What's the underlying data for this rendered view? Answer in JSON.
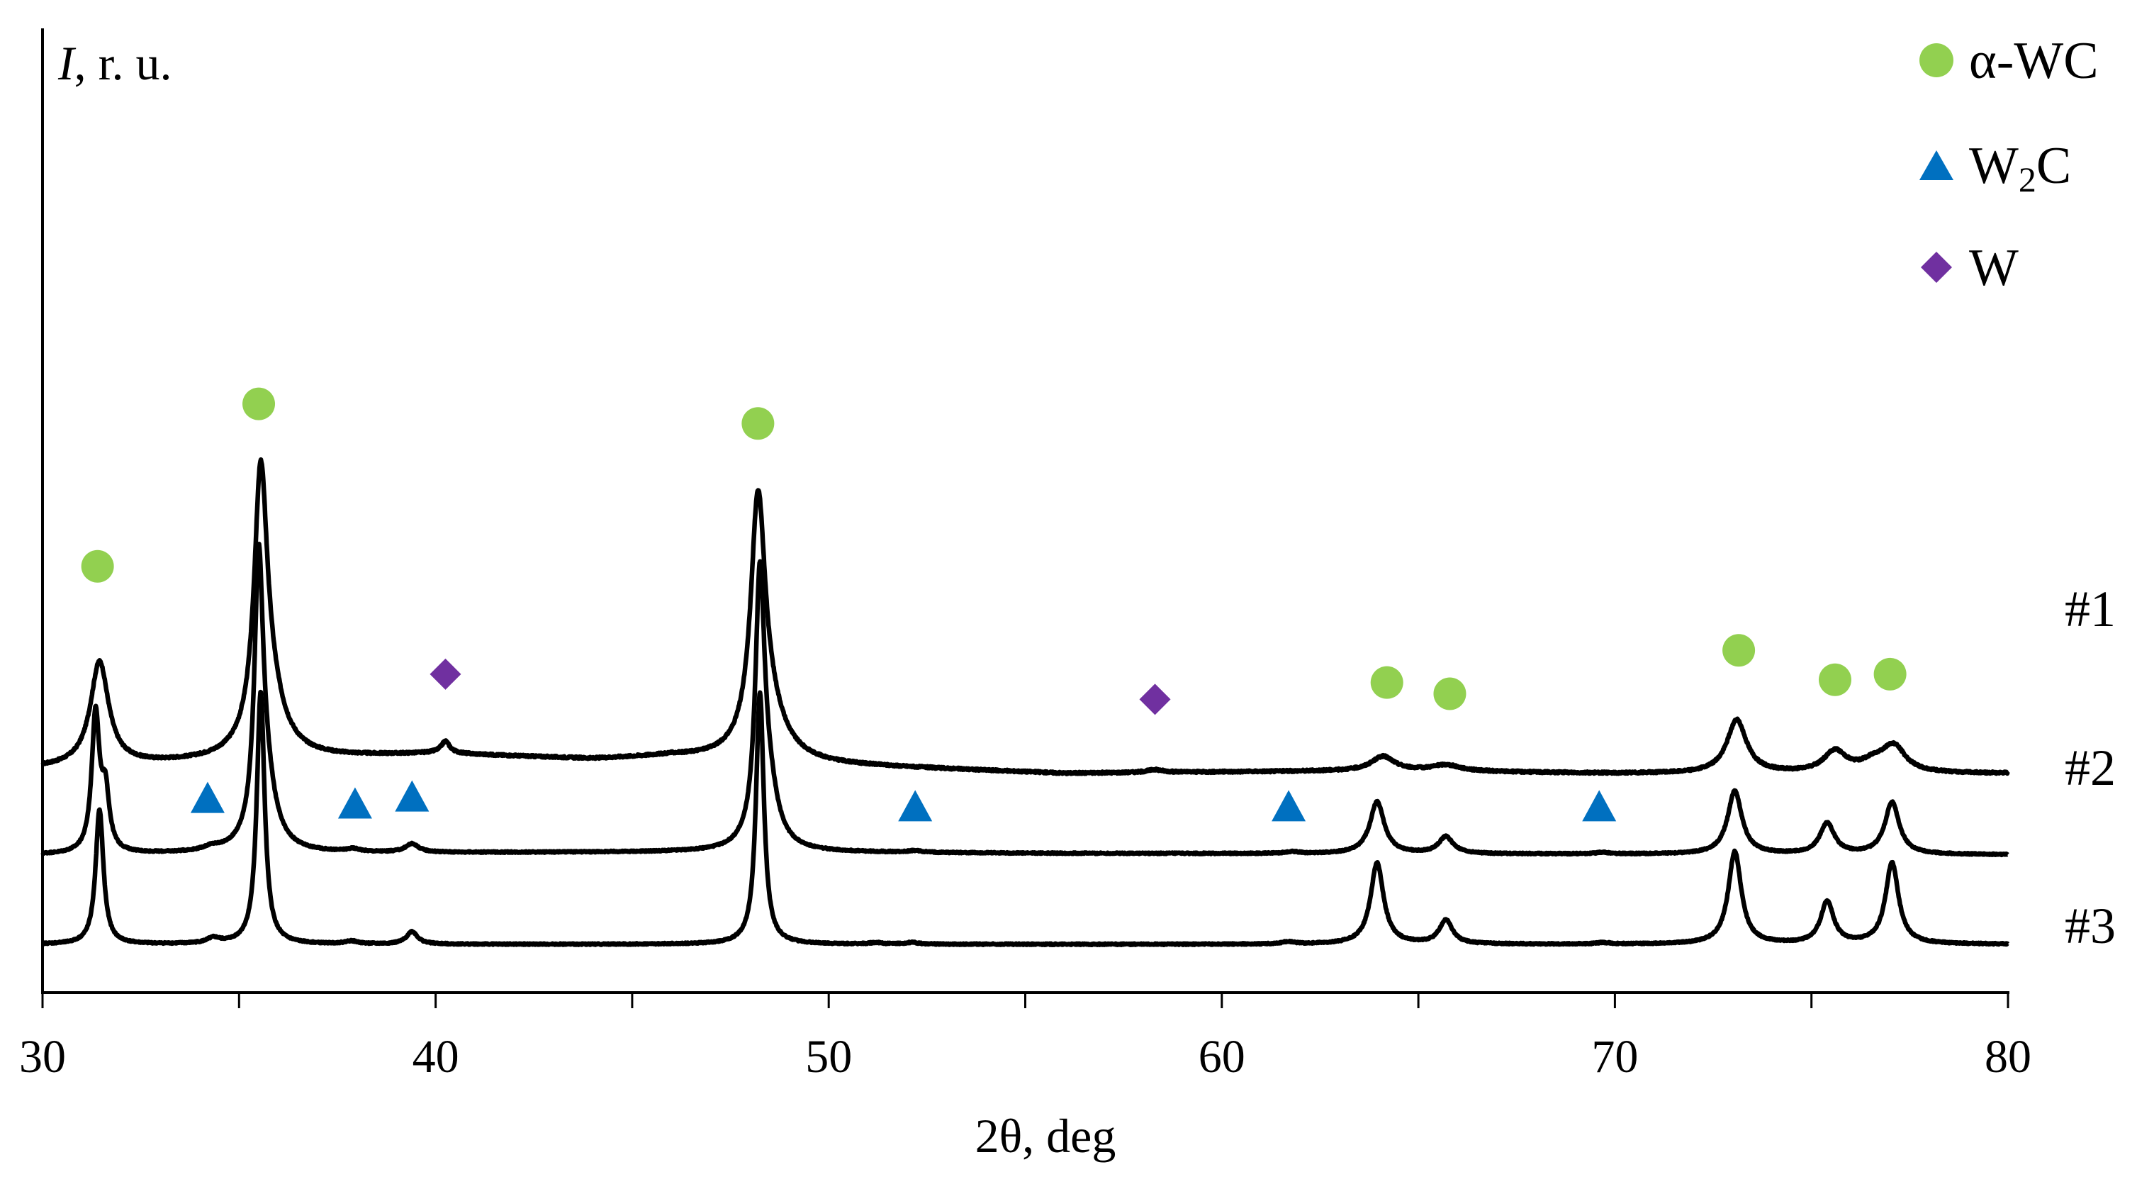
{
  "chart_data": {
    "type": "line",
    "title": "",
    "xlabel": "2θ, deg",
    "ylabel_italic": "I",
    "ylabel_rest": ", r. u.",
    "xlim": [
      30,
      80
    ],
    "xticks": [
      30,
      40,
      50,
      60,
      70,
      80
    ],
    "grid": false,
    "legend_position": "top-right",
    "legend": [
      {
        "name": "α-WC",
        "marker": "circle",
        "color": "#92d050"
      },
      {
        "name": "W2C",
        "label_main": "W",
        "label_sub": "2",
        "label_tail": "C",
        "marker": "triangle",
        "color": "#0070c0"
      },
      {
        "name": "W",
        "marker": "diamond",
        "color": "#7030a0"
      }
    ],
    "series": [
      {
        "name": "#1",
        "label": "#1",
        "baseline": 6.1,
        "noise": 0.07,
        "background": [
          [
            30,
            0.2
          ],
          [
            34,
            0.4
          ],
          [
            40,
            0.7
          ],
          [
            44,
            0.5
          ],
          [
            46,
            0.6
          ],
          [
            50,
            0.3
          ],
          [
            56,
            0.0
          ],
          [
            64,
            0.1
          ],
          [
            70,
            0.0
          ],
          [
            80,
            0.0
          ]
        ],
        "peaks": [
          {
            "x": 31.45,
            "h": 3.7,
            "w": 0.28
          },
          {
            "x": 35.55,
            "h": 9.0,
            "w": 0.2
          },
          {
            "x": 35.75,
            "h": 2.0,
            "w": 0.45
          },
          {
            "x": 40.25,
            "h": 0.42,
            "w": 0.13
          },
          {
            "x": 48.2,
            "h": 8.5,
            "w": 0.22
          },
          {
            "x": 48.45,
            "h": 1.5,
            "w": 0.5
          },
          {
            "x": 58.3,
            "h": 0.1,
            "w": 0.25
          },
          {
            "x": 64.1,
            "h": 0.5,
            "w": 0.35
          },
          {
            "x": 65.7,
            "h": 0.22,
            "w": 0.45
          },
          {
            "x": 73.1,
            "h": 1.9,
            "w": 0.3
          },
          {
            "x": 75.6,
            "h": 0.75,
            "w": 0.35
          },
          {
            "x": 76.6,
            "h": 0.35,
            "w": 0.4
          },
          {
            "x": 77.1,
            "h": 0.9,
            "w": 0.35
          }
        ]
      },
      {
        "name": "#2",
        "label": "#2",
        "baseline": 3.2,
        "noise": 0.05,
        "background": [
          [
            30,
            0.0
          ],
          [
            35,
            0.05
          ],
          [
            48,
            0.1
          ],
          [
            55,
            0.05
          ],
          [
            80,
            0.0
          ]
        ],
        "peaks": [
          {
            "x": 31.35,
            "h": 4.9,
            "w": 0.12
          },
          {
            "x": 31.6,
            "h": 2.0,
            "w": 0.12
          },
          {
            "x": 34.3,
            "h": 0.12,
            "w": 0.25
          },
          {
            "x": 35.5,
            "h": 9.0,
            "w": 0.13
          },
          {
            "x": 35.65,
            "h": 2.5,
            "w": 0.3
          },
          {
            "x": 37.9,
            "h": 0.1,
            "w": 0.2
          },
          {
            "x": 39.4,
            "h": 0.3,
            "w": 0.2
          },
          {
            "x": 48.25,
            "h": 9.0,
            "w": 0.14
          },
          {
            "x": 48.45,
            "h": 2.0,
            "w": 0.3
          },
          {
            "x": 52.2,
            "h": 0.06,
            "w": 0.2
          },
          {
            "x": 61.8,
            "h": 0.06,
            "w": 0.2
          },
          {
            "x": 63.95,
            "h": 1.85,
            "w": 0.22
          },
          {
            "x": 65.7,
            "h": 0.6,
            "w": 0.22
          },
          {
            "x": 69.7,
            "h": 0.05,
            "w": 0.2
          },
          {
            "x": 73.05,
            "h": 2.25,
            "w": 0.22
          },
          {
            "x": 75.4,
            "h": 1.1,
            "w": 0.22
          },
          {
            "x": 77.05,
            "h": 1.85,
            "w": 0.22
          }
        ]
      },
      {
        "name": "#3",
        "label": "#3",
        "baseline": 0.0,
        "noise": 0.05,
        "background": [
          [
            30,
            0.0
          ],
          [
            80,
            0.0
          ]
        ],
        "peaks": [
          {
            "x": 31.45,
            "h": 4.8,
            "w": 0.12
          },
          {
            "x": 34.35,
            "h": 0.18,
            "w": 0.2
          },
          {
            "x": 35.55,
            "h": 9.0,
            "w": 0.12
          },
          {
            "x": 37.85,
            "h": 0.1,
            "w": 0.2
          },
          {
            "x": 39.4,
            "h": 0.45,
            "w": 0.17
          },
          {
            "x": 48.25,
            "h": 9.0,
            "w": 0.12
          },
          {
            "x": 51.2,
            "h": 0.05,
            "w": 0.2
          },
          {
            "x": 52.1,
            "h": 0.06,
            "w": 0.2
          },
          {
            "x": 61.7,
            "h": 0.08,
            "w": 0.2
          },
          {
            "x": 63.95,
            "h": 2.9,
            "w": 0.2
          },
          {
            "x": 65.7,
            "h": 0.85,
            "w": 0.2
          },
          {
            "x": 69.7,
            "h": 0.05,
            "w": 0.2
          },
          {
            "x": 73.05,
            "h": 3.3,
            "w": 0.2
          },
          {
            "x": 75.4,
            "h": 1.5,
            "w": 0.2
          },
          {
            "x": 77.05,
            "h": 2.9,
            "w": 0.2
          }
        ]
      }
    ],
    "markers": [
      {
        "phase": "α-WC",
        "x": 31.4,
        "y": 13.5
      },
      {
        "phase": "α-WC",
        "x": 35.5,
        "y": 19.3
      },
      {
        "phase": "α-WC",
        "x": 48.2,
        "y": 18.6
      },
      {
        "phase": "α-WC",
        "x": 64.2,
        "y": 9.35
      },
      {
        "phase": "α-WC",
        "x": 65.8,
        "y": 8.95
      },
      {
        "phase": "α-WC",
        "x": 73.15,
        "y": 10.5
      },
      {
        "phase": "α-WC",
        "x": 75.6,
        "y": 9.45
      },
      {
        "phase": "α-WC",
        "x": 77.0,
        "y": 9.65
      },
      {
        "phase": "W2C",
        "x": 34.2,
        "y": 5.15
      },
      {
        "phase": "W2C",
        "x": 37.95,
        "y": 4.95
      },
      {
        "phase": "W2C",
        "x": 39.4,
        "y": 5.2
      },
      {
        "phase": "W2C",
        "x": 52.2,
        "y": 4.85
      },
      {
        "phase": "W2C",
        "x": 61.7,
        "y": 4.85
      },
      {
        "phase": "W2C",
        "x": 69.6,
        "y": 4.85
      },
      {
        "phase": "W",
        "x": 40.25,
        "y": 9.65
      },
      {
        "phase": "W",
        "x": 58.3,
        "y": 8.75
      }
    ]
  }
}
